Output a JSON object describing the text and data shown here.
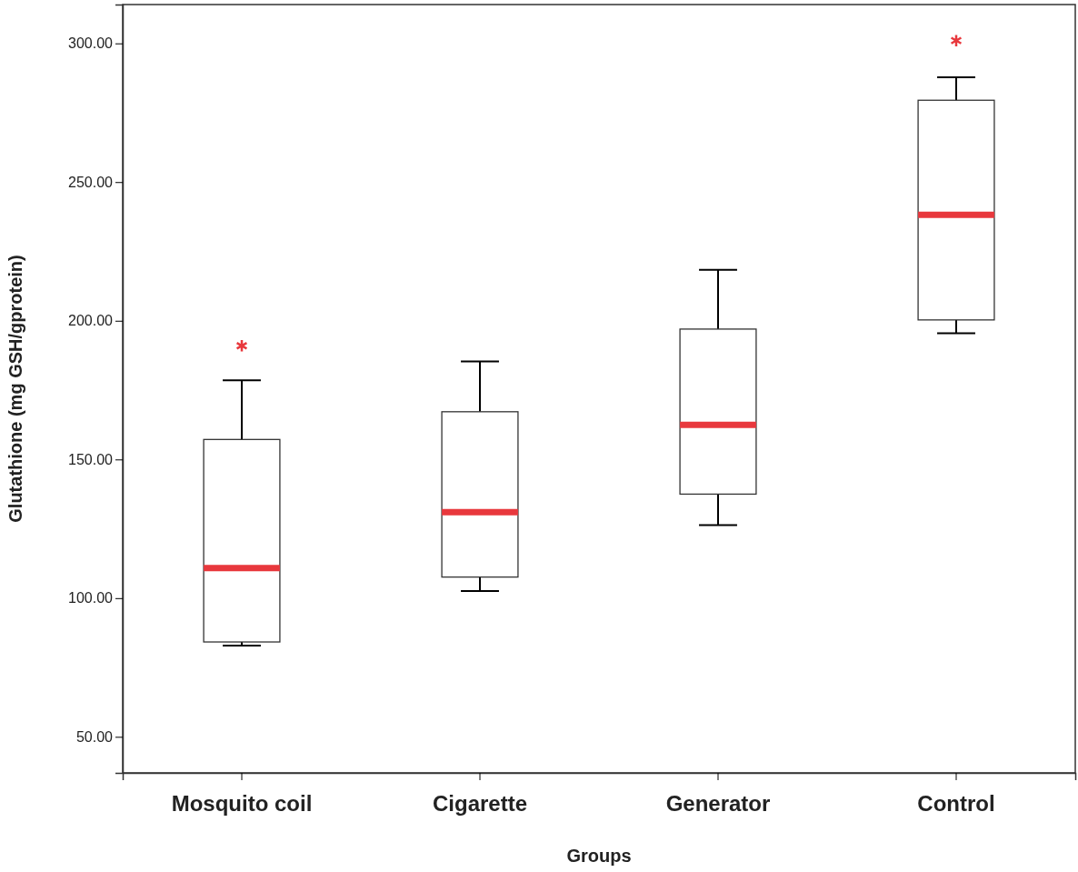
{
  "chart_data": {
    "type": "box",
    "xlabel": "Groups",
    "ylabel": "Glutathione (mg GSH/gprotein)",
    "categories": [
      "Mosquito coil",
      "Cigarette",
      "Generator",
      "Control"
    ],
    "boxes": [
      {
        "low": 82.9,
        "q1": 84.2,
        "median": 110.8,
        "q3": 157.2,
        "high": 178.5,
        "outliers": [
          191
        ]
      },
      {
        "low": 102.6,
        "q1": 107.6,
        "median": 131,
        "q3": 167.2,
        "high": 185.3
      },
      {
        "low": 126.3,
        "q1": 137.5,
        "median": 162.5,
        "q3": 197,
        "high": 218.4
      },
      {
        "low": 195.5,
        "q1": 200.3,
        "median": 238.2,
        "q3": 279.5,
        "high": 287.8,
        "outliers": [
          301
        ]
      }
    ],
    "ylim": [
      37,
      314
    ],
    "yticks": [
      {
        "value": 50,
        "label": "50.00"
      },
      {
        "value": 100,
        "label": "100.00"
      },
      {
        "value": 150,
        "label": "150.00"
      },
      {
        "value": 200,
        "label": "200.00"
      },
      {
        "value": 250,
        "label": "250.00"
      },
      {
        "value": 300,
        "label": "300.00"
      }
    ],
    "grid": false
  }
}
